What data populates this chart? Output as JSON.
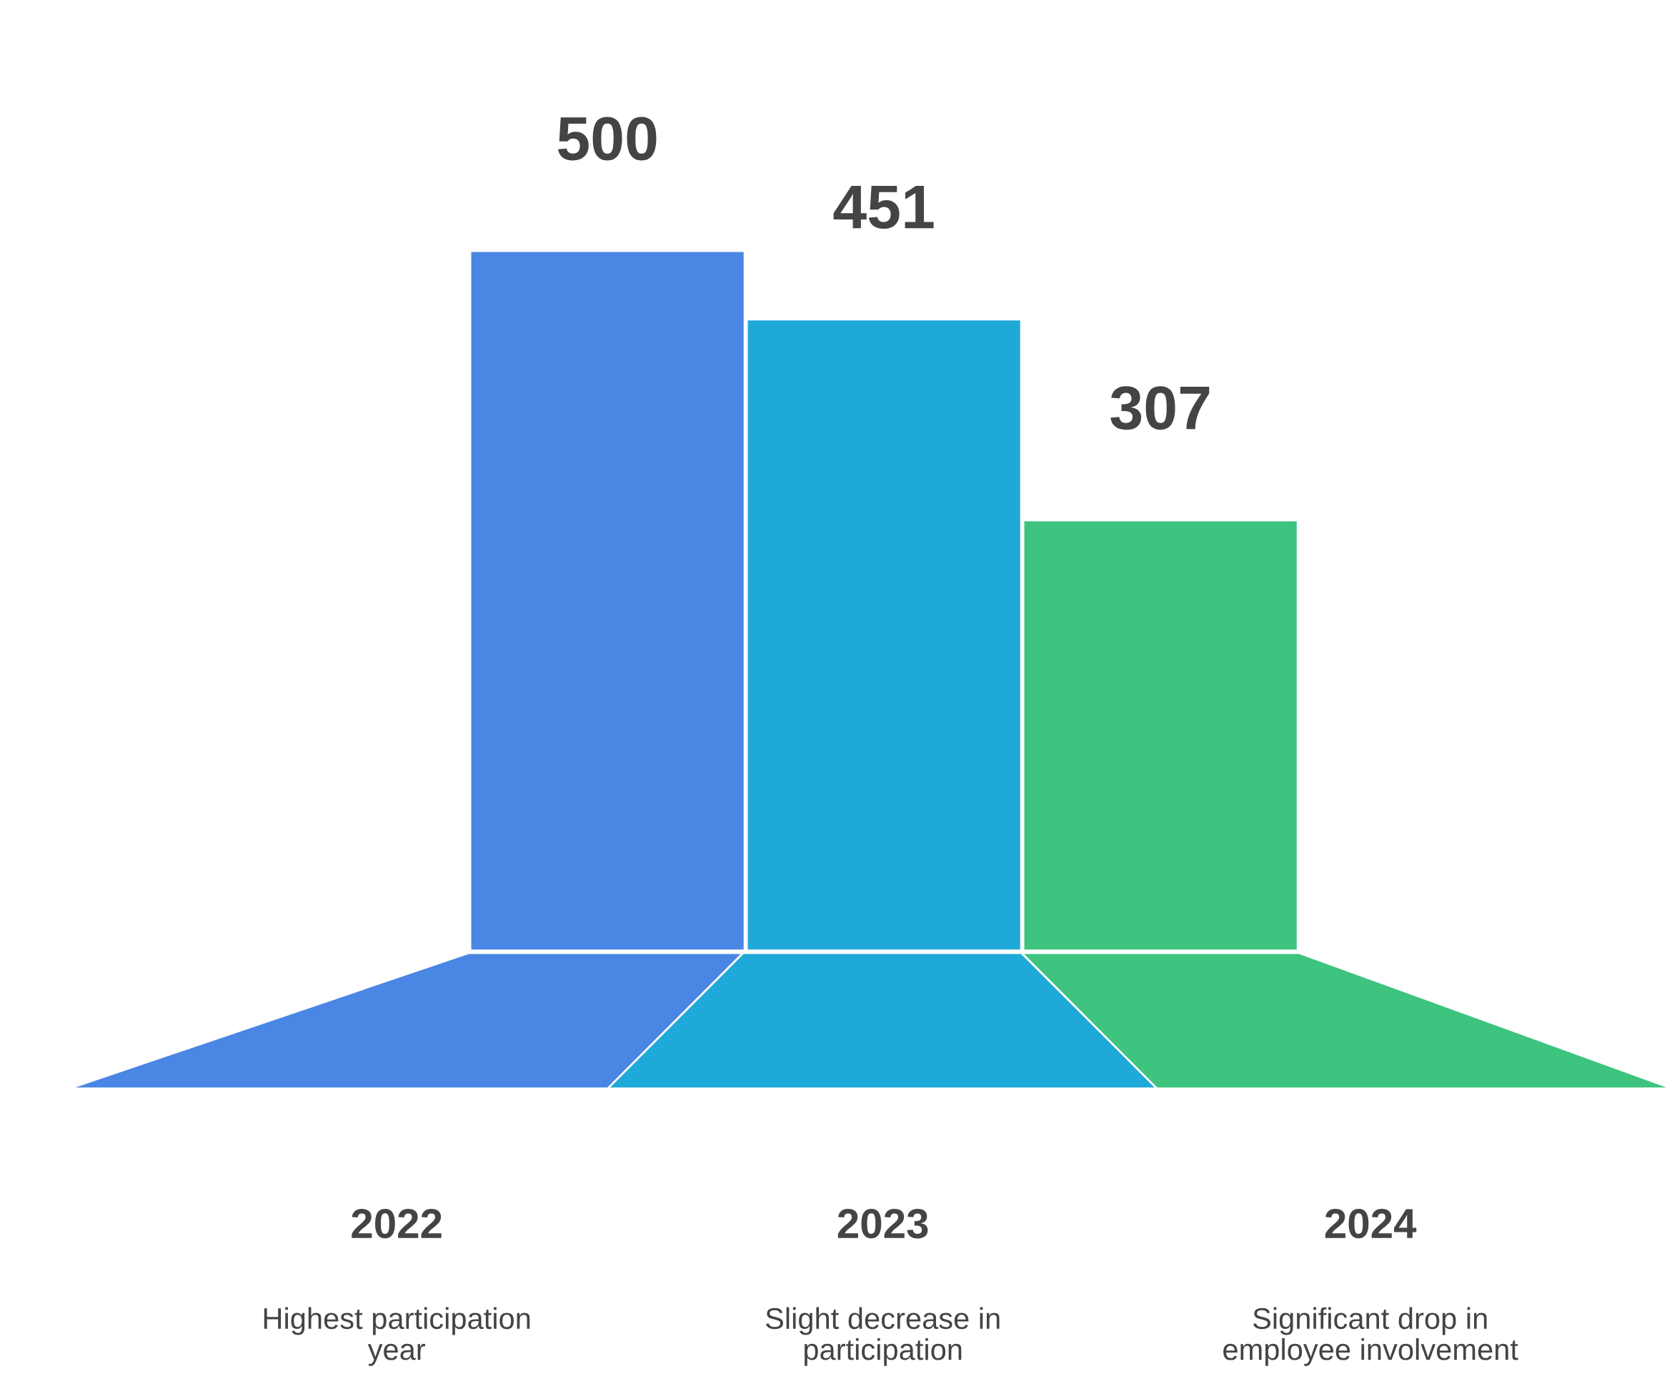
{
  "chart_data": {
    "type": "bar",
    "categories": [
      "2022",
      "2023",
      "2024"
    ],
    "values": [
      500,
      451,
      307
    ],
    "colors": [
      "#4a86e3",
      "#1fa9d8",
      "#3ec47f"
    ],
    "data_labels": true,
    "annotations": [
      "Highest participation\nyear",
      "Slight decrease in\nparticipation",
      "Significant drop in\nemployee involvement"
    ]
  }
}
